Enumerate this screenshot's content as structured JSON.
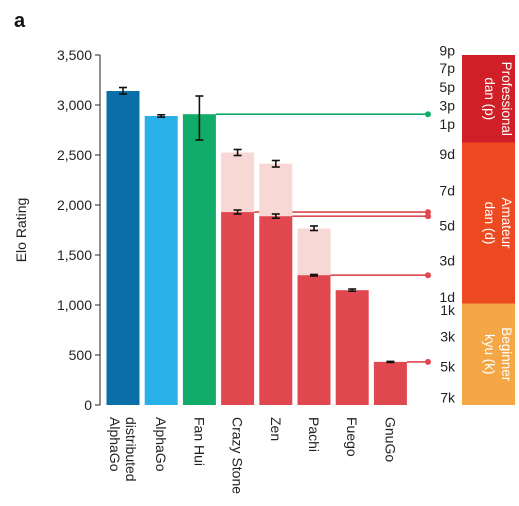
{
  "chart_data": {
    "type": "bar",
    "panel_label": "a",
    "ylabel": "Elo Rating",
    "ylim": [
      0,
      3500
    ],
    "yticks": [
      0,
      500,
      1000,
      1500,
      2000,
      2500,
      3000,
      3500
    ],
    "ytick_labels": [
      "0",
      "500",
      "1,000",
      "1,500",
      "2,000",
      "2,500",
      "3,000",
      "3,500"
    ],
    "categories": [
      {
        "lines": [
          "AlphaGo",
          "distributed"
        ]
      },
      {
        "lines": [
          "AlphaGo"
        ]
      },
      {
        "lines": [
          "Fan Hui"
        ]
      },
      {
        "lines": [
          "Crazy Stone"
        ]
      },
      {
        "lines": [
          "Zen"
        ]
      },
      {
        "lines": [
          "Pachi"
        ]
      },
      {
        "lines": [
          "Fuego"
        ]
      },
      {
        "lines": [
          "GnuGo"
        ]
      }
    ],
    "values": [
      3140,
      2890,
      2908,
      1929,
      1888,
      1298,
      1148,
      431
    ],
    "upper_values": [
      null,
      null,
      null,
      2525,
      2413,
      1765,
      null,
      null
    ],
    "errors": [
      [
        3110,
        3175
      ],
      [
        2878,
        2902
      ],
      [
        2650,
        3090
      ],
      [
        1910,
        1950
      ],
      [
        1868,
        1910
      ],
      [
        1290,
        1305
      ],
      [
        1138,
        1160
      ],
      [
        426,
        436
      ]
    ],
    "upper_errors": [
      null,
      null,
      null,
      [
        2495,
        2555
      ],
      [
        2380,
        2445
      ],
      [
        1745,
        1790
      ],
      null,
      null
    ],
    "bar_colors": [
      "#0A6FA6",
      "#2AB0E8",
      "#12AC6A",
      "#E0474E",
      "#E0474E",
      "#E0474E",
      "#E0474E",
      "#E0474E"
    ],
    "upper_bar_color": "#F7D8D4",
    "connectors": [
      {
        "y": 2908,
        "color": "#12AC6A"
      },
      {
        "y": 1929,
        "color": "#E0474E"
      },
      {
        "y": 1888,
        "color": "#E0474E"
      },
      {
        "y": 1298,
        "color": "#E0474E"
      },
      {
        "y": 431,
        "color": "#E0474E"
      }
    ],
    "rank_labels": [
      {
        "text": "9p",
        "y": 3545
      },
      {
        "text": "7p",
        "y": 3370
      },
      {
        "text": "5p",
        "y": 3180
      },
      {
        "text": "3p",
        "y": 2995
      },
      {
        "text": "1p",
        "y": 2810
      },
      {
        "text": "9d",
        "y": 2510
      },
      {
        "text": "7d",
        "y": 2145
      },
      {
        "text": "5d",
        "y": 1795
      },
      {
        "text": "3d",
        "y": 1445
      },
      {
        "text": "1d",
        "y": 1080
      },
      {
        "text": "1k",
        "y": 950
      },
      {
        "text": "3k",
        "y": 685
      },
      {
        "text": "5k",
        "y": 385
      },
      {
        "text": "7k",
        "y": 75
      }
    ],
    "rank_bands": [
      {
        "lines": [
          "Professional",
          "dan (p)"
        ],
        "y_top": 3500,
        "y_bottom": 2625,
        "color": "#D11F28"
      },
      {
        "lines": [
          "Amateur",
          "dan (d)"
        ],
        "y_top": 2625,
        "y_bottom": 1015,
        "color": "#EE4A22"
      },
      {
        "lines": [
          "Beginner",
          "kyu (k)"
        ],
        "y_top": 1015,
        "y_bottom": 0,
        "color": "#F5A745"
      }
    ]
  }
}
